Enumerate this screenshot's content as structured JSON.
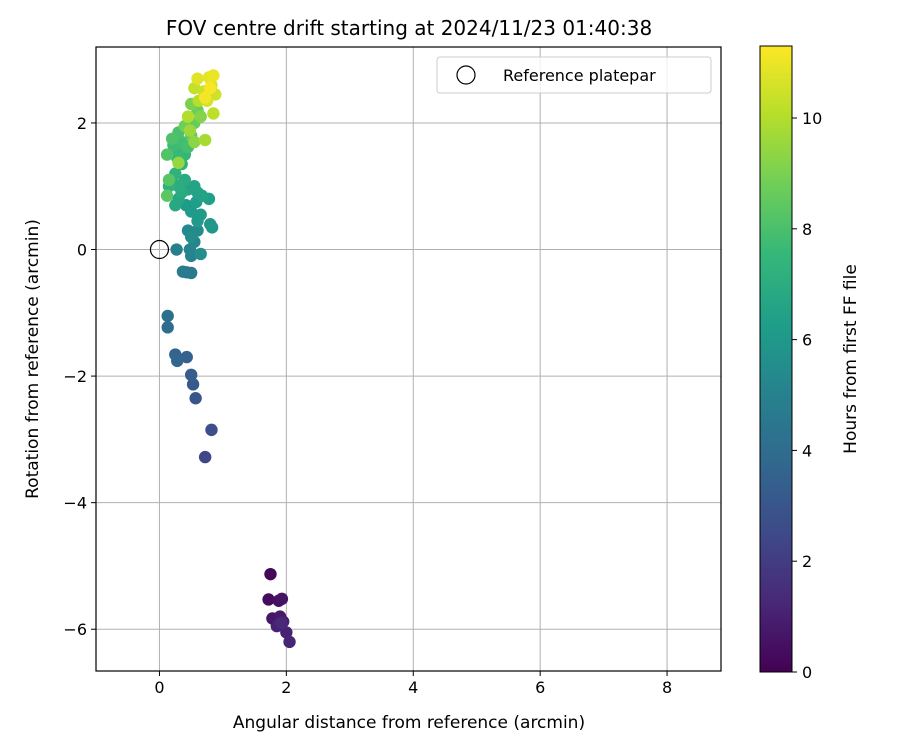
{
  "chart_data": {
    "type": "scatter",
    "title": "FOV centre drift starting at 2024/11/23 01:40:38",
    "xlabel": "Angular distance from reference (arcmin)",
    "ylabel": "Rotation from reference (arcmin)",
    "xlim": [
      -1.0,
      8.85
    ],
    "ylim": [
      -6.66,
      3.2
    ],
    "xticks": [
      0,
      2,
      4,
      6,
      8
    ],
    "yticks": [
      -6,
      -4,
      -2,
      0,
      2
    ],
    "grid": true,
    "legend": {
      "position": "top-right",
      "entries": [
        "Reference platepar"
      ]
    },
    "colorbar": {
      "label": "Hours from first FF file",
      "range": [
        0,
        11.3
      ],
      "ticks": [
        0,
        2,
        4,
        6,
        8,
        10
      ],
      "colormap": [
        "#440154",
        "#482878",
        "#3e4a89",
        "#31688e",
        "#26828e",
        "#1f9e89",
        "#35b779",
        "#6ece58",
        "#b5de2b",
        "#fde725"
      ]
    },
    "reference_point": {
      "x": 0,
      "y": 0
    },
    "points": [
      [
        1.75,
        -5.13,
        0.2
      ],
      [
        1.72,
        -5.53,
        0.35
      ],
      [
        1.88,
        -5.55,
        0.5
      ],
      [
        1.93,
        -5.52,
        0.6
      ],
      [
        1.78,
        -5.83,
        0.7
      ],
      [
        1.9,
        -5.8,
        0.8
      ],
      [
        1.95,
        -5.88,
        0.9
      ],
      [
        1.85,
        -5.95,
        1.0
      ],
      [
        2.0,
        -6.05,
        1.1
      ],
      [
        2.05,
        -6.2,
        1.2
      ],
      [
        1.92,
        -5.9,
        1.3
      ],
      [
        0.72,
        -3.28,
        2.4
      ],
      [
        0.82,
        -2.85,
        2.7
      ],
      [
        0.57,
        -2.35,
        3.0
      ],
      [
        0.53,
        -2.13,
        3.2
      ],
      [
        0.5,
        -1.98,
        3.3
      ],
      [
        0.43,
        -1.7,
        3.5
      ],
      [
        0.25,
        -1.66,
        3.6
      ],
      [
        0.28,
        -1.76,
        3.7
      ],
      [
        0.13,
        -1.23,
        4.0
      ],
      [
        0.13,
        -1.05,
        4.1
      ],
      [
        0.43,
        -0.36,
        4.5
      ],
      [
        0.5,
        -0.37,
        4.6
      ],
      [
        0.37,
        -0.35,
        4.7
      ],
      [
        0.27,
        0.0,
        4.9
      ],
      [
        0.5,
        -0.1,
        5.0
      ],
      [
        0.48,
        0.0,
        5.1
      ],
      [
        0.55,
        0.12,
        5.2
      ],
      [
        0.45,
        0.3,
        5.3
      ],
      [
        0.6,
        0.3,
        5.4
      ],
      [
        0.5,
        0.2,
        5.5
      ],
      [
        0.65,
        -0.07,
        5.6
      ],
      [
        0.83,
        0.35,
        5.9
      ],
      [
        0.8,
        0.4,
        6.0
      ],
      [
        0.6,
        0.45,
        6.1
      ],
      [
        0.65,
        0.55,
        6.2
      ],
      [
        0.5,
        0.6,
        6.1
      ],
      [
        0.42,
        0.7,
        6.2
      ],
      [
        0.58,
        0.75,
        6.3
      ],
      [
        0.78,
        0.8,
        6.4
      ],
      [
        0.6,
        0.9,
        6.5
      ],
      [
        0.67,
        0.85,
        6.5
      ],
      [
        0.55,
        1.0,
        6.6
      ],
      [
        0.45,
        0.95,
        6.6
      ],
      [
        0.3,
        0.8,
        6.7
      ],
      [
        0.25,
        0.7,
        6.8
      ],
      [
        0.35,
        0.9,
        6.9
      ],
      [
        0.4,
        1.1,
        6.9
      ],
      [
        0.3,
        1.0,
        7.0
      ],
      [
        0.2,
        1.1,
        7.1
      ],
      [
        0.15,
        1.0,
        7.2
      ],
      [
        0.25,
        1.2,
        7.3
      ],
      [
        0.35,
        1.35,
        7.3
      ],
      [
        0.28,
        1.45,
        7.4
      ],
      [
        0.4,
        1.5,
        7.5
      ],
      [
        0.3,
        1.55,
        7.6
      ],
      [
        0.22,
        1.65,
        7.7
      ],
      [
        0.35,
        1.7,
        7.8
      ],
      [
        0.45,
        1.62,
        7.9
      ],
      [
        0.3,
        1.85,
        8.0
      ],
      [
        0.2,
        1.75,
        8.1
      ],
      [
        0.12,
        1.5,
        8.2
      ],
      [
        0.15,
        1.1,
        8.3
      ],
      [
        0.12,
        0.85,
        8.4
      ],
      [
        0.5,
        1.8,
        8.5
      ],
      [
        0.55,
        2.0,
        8.6
      ],
      [
        0.6,
        2.2,
        8.7
      ],
      [
        0.4,
        1.95,
        8.8
      ],
      [
        0.5,
        2.3,
        9.0
      ],
      [
        0.65,
        2.1,
        9.2
      ],
      [
        0.55,
        1.7,
        9.3
      ],
      [
        0.3,
        1.37,
        9.5
      ],
      [
        0.48,
        1.88,
        9.6
      ],
      [
        0.72,
        1.73,
        9.8
      ],
      [
        0.45,
        2.1,
        10.0
      ],
      [
        0.62,
        2.35,
        10.1
      ],
      [
        0.85,
        2.15,
        10.2
      ],
      [
        0.55,
        2.55,
        10.3
      ],
      [
        0.7,
        2.5,
        10.4
      ],
      [
        0.88,
        2.45,
        10.5
      ],
      [
        0.75,
        2.35,
        10.6
      ],
      [
        0.82,
        2.6,
        10.7
      ],
      [
        0.6,
        2.7,
        10.8
      ],
      [
        0.78,
        2.72,
        10.9
      ],
      [
        0.85,
        2.75,
        11.0
      ],
      [
        0.72,
        2.4,
        11.1
      ],
      [
        0.8,
        2.55,
        11.2
      ]
    ]
  }
}
